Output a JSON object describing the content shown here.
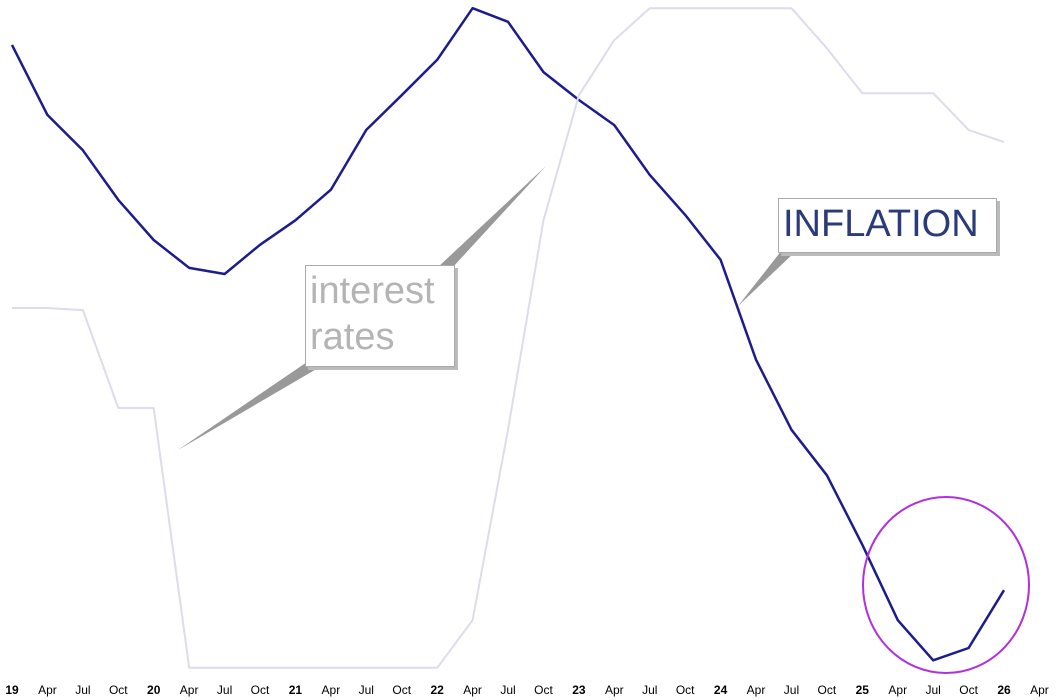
{
  "chart_data": {
    "type": "line",
    "categories": [
      "19",
      "Apr",
      "Jul",
      "Oct",
      "20",
      "Apr",
      "Jul",
      "Oct",
      "21",
      "Apr",
      "Jul",
      "Oct",
      "22",
      "Apr",
      "Jul",
      "Oct",
      "23",
      "Apr",
      "Jul",
      "Oct",
      "24",
      "Apr",
      "Jul",
      "Oct",
      "25",
      "Apr",
      "Jul",
      "Oct",
      "26",
      "Apr"
    ],
    "series": [
      {
        "name": "INFLATION",
        "color": "#1c1c8e",
        "values": [
          93.4,
          83.1,
          77.9,
          70.6,
          64.7,
          60.6,
          59.7,
          64.0,
          67.6,
          72.1,
          80.9,
          86.0,
          91.2,
          98.8,
          96.8,
          89.4,
          85.3,
          81.6,
          74.3,
          68.4,
          61.8,
          47.1,
          36.8,
          30.1,
          19.9,
          8.8,
          2.9,
          4.7,
          13.2,
          null
        ]
      },
      {
        "name": "interest rates",
        "color": "#dcdcec",
        "values": [
          54.7,
          54.7,
          54.4,
          40.0,
          40.0,
          1.8,
          1.8,
          1.8,
          1.8,
          1.8,
          1.8,
          1.8,
          1.8,
          8.8,
          36.8,
          67.6,
          86.0,
          94.1,
          98.8,
          98.8,
          98.8,
          98.8,
          98.8,
          92.9,
          86.3,
          86.3,
          86.3,
          80.9,
          79.1,
          null
        ]
      }
    ],
    "ylim": [
      0,
      100
    ]
  }
}
